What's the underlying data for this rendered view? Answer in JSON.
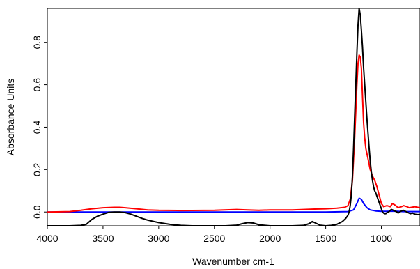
{
  "chart_data": {
    "type": "line",
    "xlabel": "Wavenumber cm-1",
    "ylabel": "Absorbance Units",
    "x_reversed": true,
    "xlim": [
      4000,
      653
    ],
    "ylim": [
      -0.065,
      0.96
    ],
    "xticks": [
      4000,
      3500,
      3000,
      2500,
      2000,
      1500,
      1000
    ],
    "yticks": [
      0.0,
      0.2,
      0.4,
      0.6,
      0.8
    ],
    "ytick_labels": [
      "0.0",
      "0.2",
      "0.4",
      "0.6",
      "0.8"
    ],
    "grid": false,
    "series": [
      {
        "color": "#0000ff",
        "x": [
          4000,
          3500,
          3000,
          2500,
          2000,
          1500,
          1300,
          1250,
          1220,
          1200,
          1180,
          1160,
          1130,
          1100,
          1050,
          1000,
          950,
          900,
          850,
          800,
          750,
          653
        ],
        "y": [
          0.0,
          0.0,
          0.0,
          0.0,
          0.0,
          0.0,
          0.002,
          0.01,
          0.04,
          0.065,
          0.06,
          0.04,
          0.02,
          0.01,
          0.005,
          0.003,
          0.003,
          0.004,
          0.003,
          0.002,
          0.002,
          0.002
        ]
      },
      {
        "color": "#ff0000",
        "x": [
          4000,
          3800,
          3700,
          3600,
          3500,
          3400,
          3350,
          3300,
          3200,
          3100,
          3000,
          2800,
          2500,
          2300,
          2200,
          2100,
          2000,
          1800,
          1600,
          1500,
          1400,
          1330,
          1300,
          1280,
          1260,
          1240,
          1220,
          1210,
          1200,
          1190,
          1180,
          1170,
          1160,
          1150,
          1140,
          1120,
          1100,
          1080,
          1060,
          1040,
          1020,
          1000,
          980,
          950,
          920,
          900,
          870,
          850,
          820,
          800,
          770,
          750,
          700,
          653
        ],
        "y": [
          0.0,
          0.002,
          0.008,
          0.015,
          0.02,
          0.022,
          0.022,
          0.02,
          0.015,
          0.01,
          0.008,
          0.007,
          0.008,
          0.012,
          0.01,
          0.008,
          0.01,
          0.01,
          0.014,
          0.015,
          0.018,
          0.022,
          0.03,
          0.06,
          0.15,
          0.35,
          0.6,
          0.7,
          0.74,
          0.73,
          0.68,
          0.55,
          0.42,
          0.35,
          0.3,
          0.25,
          0.2,
          0.17,
          0.15,
          0.12,
          0.08,
          0.04,
          0.025,
          0.03,
          0.025,
          0.04,
          0.03,
          0.02,
          0.025,
          0.03,
          0.025,
          0.02,
          0.025,
          0.02
        ]
      },
      {
        "color": "#000000",
        "x": [
          4000,
          3800,
          3700,
          3650,
          3600,
          3550,
          3500,
          3450,
          3400,
          3350,
          3300,
          3250,
          3200,
          3150,
          3100,
          3000,
          2900,
          2800,
          2700,
          2600,
          2500,
          2400,
          2300,
          2250,
          2200,
          2150,
          2100,
          2000,
          1900,
          1800,
          1700,
          1650,
          1620,
          1600,
          1550,
          1500,
          1450,
          1400,
          1350,
          1320,
          1300,
          1290,
          1280,
          1270,
          1260,
          1250,
          1240,
          1230,
          1220,
          1210,
          1200,
          1190,
          1180,
          1170,
          1160,
          1150,
          1140,
          1130,
          1120,
          1110,
          1100,
          1090,
          1080,
          1070,
          1060,
          1050,
          1040,
          1030,
          1020,
          1010,
          1000,
          990,
          980,
          970,
          960,
          950,
          930,
          920,
          910,
          900,
          880,
          860,
          850,
          840,
          820,
          800,
          780,
          760,
          740,
          720,
          700,
          680,
          653
        ],
        "y": [
          -0.065,
          -0.065,
          -0.063,
          -0.058,
          -0.035,
          -0.02,
          -0.01,
          -0.002,
          0.0,
          0.0,
          -0.003,
          -0.01,
          -0.02,
          -0.03,
          -0.038,
          -0.05,
          -0.058,
          -0.063,
          -0.065,
          -0.065,
          -0.065,
          -0.065,
          -0.062,
          -0.055,
          -0.05,
          -0.052,
          -0.06,
          -0.065,
          -0.065,
          -0.065,
          -0.063,
          -0.055,
          -0.045,
          -0.05,
          -0.062,
          -0.065,
          -0.063,
          -0.058,
          -0.045,
          -0.03,
          -0.015,
          0.0,
          0.03,
          0.08,
          0.17,
          0.3,
          0.45,
          0.6,
          0.75,
          0.88,
          0.96,
          0.93,
          0.86,
          0.78,
          0.68,
          0.6,
          0.52,
          0.44,
          0.37,
          0.3,
          0.24,
          0.19,
          0.15,
          0.12,
          0.1,
          0.09,
          0.075,
          0.06,
          0.045,
          0.03,
          0.015,
          0.0,
          -0.005,
          -0.008,
          -0.008,
          -0.003,
          0.002,
          0.008,
          0.012,
          0.01,
          0.005,
          0.0,
          -0.005,
          -0.002,
          0.005,
          0.008,
          0.002,
          -0.003,
          -0.008,
          -0.005,
          -0.01,
          -0.012,
          -0.012
        ]
      }
    ]
  }
}
